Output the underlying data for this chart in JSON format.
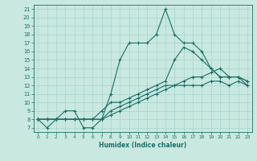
{
  "xlabel": "Humidex (Indice chaleur)",
  "bg_color": "#c8e8e0",
  "line_color": "#1a7068",
  "grid_color": "#a8d4cc",
  "xlim": [
    -0.5,
    23.5
  ],
  "ylim": [
    6.5,
    21.5
  ],
  "xticks": [
    0,
    1,
    2,
    3,
    4,
    5,
    6,
    7,
    8,
    9,
    10,
    11,
    12,
    13,
    14,
    15,
    16,
    17,
    18,
    19,
    20,
    21,
    22,
    23
  ],
  "yticks": [
    7,
    8,
    9,
    10,
    11,
    12,
    13,
    14,
    15,
    16,
    17,
    18,
    19,
    20,
    21
  ],
  "line1_y": [
    8,
    7,
    8,
    9,
    9,
    7,
    7,
    8,
    11,
    15,
    17,
    17,
    17,
    18,
    21,
    18,
    17,
    17,
    16,
    14,
    13,
    13,
    13,
    12
  ],
  "line2_y": [
    8,
    8,
    8,
    8,
    8,
    8,
    8,
    9,
    10,
    10,
    10.5,
    11,
    11.5,
    12,
    12.5,
    15,
    16.5,
    16,
    15,
    14,
    13,
    13,
    13,
    12.5
  ],
  "line3_y": [
    8,
    8,
    8,
    8,
    8,
    8,
    8,
    8,
    9,
    9.5,
    10,
    10.5,
    11,
    11.5,
    12,
    12,
    12.5,
    13,
    13,
    13.5,
    14,
    13,
    13,
    12.5
  ],
  "line4_y": [
    8,
    8,
    8,
    8,
    8,
    8,
    8,
    8,
    8.5,
    9,
    9.5,
    10,
    10.5,
    11,
    11.5,
    12,
    12,
    12,
    12,
    12.5,
    12.5,
    12,
    12.5,
    12
  ]
}
